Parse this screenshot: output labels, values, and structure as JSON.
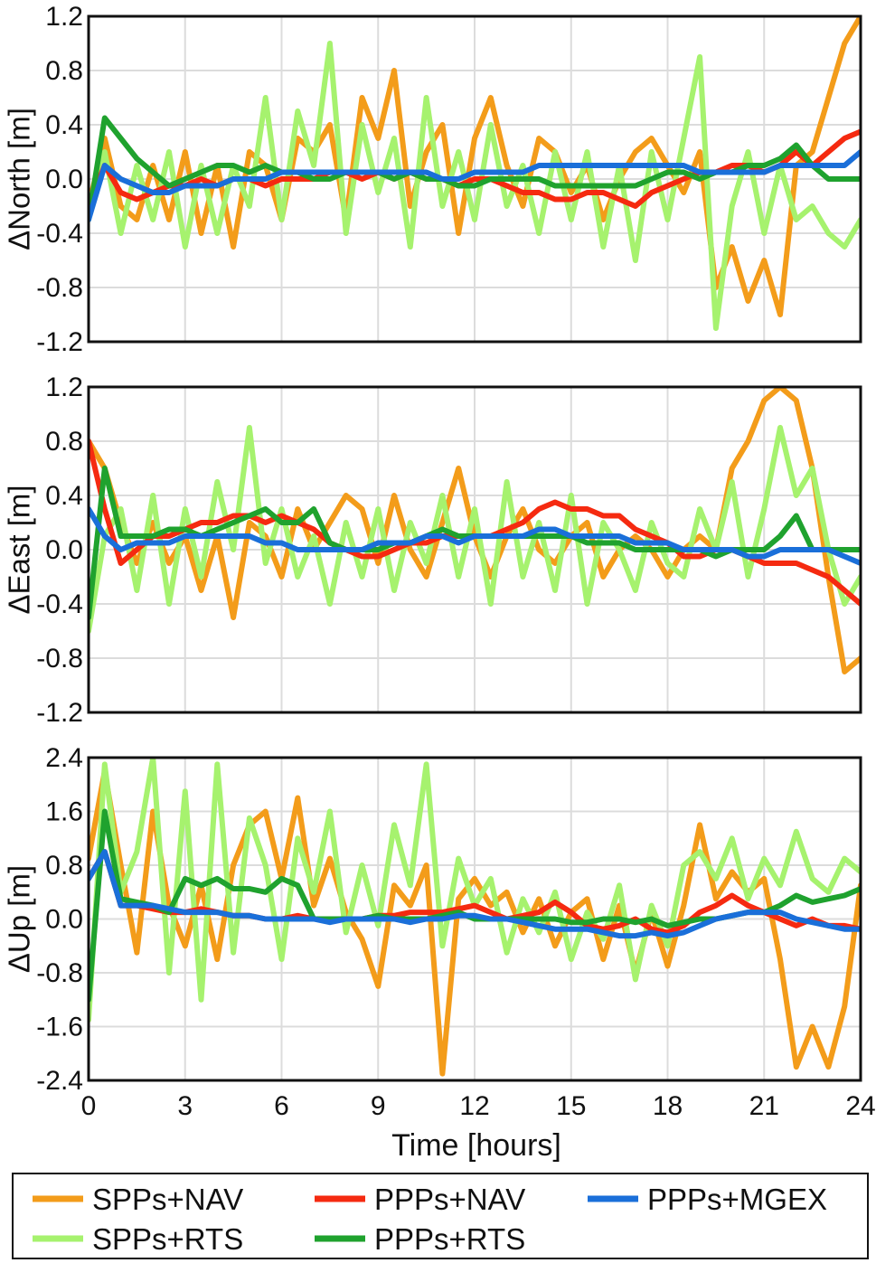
{
  "chart_data": [
    {
      "type": "line",
      "panel": "north",
      "ylabel": "ΔNorth [m]",
      "ylim": [
        -1.2,
        1.2
      ],
      "yticks": [
        -1.2,
        -0.8,
        -0.4,
        0.0,
        0.4,
        0.8,
        1.2
      ],
      "ytick_labels": [
        "-1.2",
        "-0.8",
        "-0.4",
        "0.0",
        "0.4",
        "0.8",
        "1.2"
      ],
      "xlim": [
        0,
        24
      ],
      "xticks": [
        0,
        3,
        6,
        9,
        12,
        15,
        18,
        21,
        24
      ],
      "grid": true,
      "x": [
        0,
        0.5,
        1,
        1.5,
        2,
        2.5,
        3,
        3.5,
        4,
        4.5,
        5,
        5.5,
        6,
        6.5,
        7,
        7.5,
        8,
        8.5,
        9,
        9.5,
        10,
        10.5,
        11,
        11.5,
        12,
        12.5,
        13,
        13.5,
        14,
        14.5,
        15,
        15.5,
        16,
        16.5,
        17,
        17.5,
        18,
        18.5,
        19,
        19.5,
        20,
        20.5,
        21,
        21.5,
        22,
        22.5,
        23,
        23.5,
        24
      ],
      "series": [
        {
          "name": "SPPs+NAV",
          "color": "#f39c1a",
          "width": 6,
          "values": [
            -0.2,
            0.3,
            -0.2,
            -0.3,
            0.1,
            -0.3,
            0.2,
            -0.4,
            0.1,
            -0.5,
            0.2,
            0.1,
            -0.3,
            0.3,
            0.2,
            0.4,
            -0.3,
            0.6,
            0.3,
            0.8,
            -0.2,
            0.2,
            0.4,
            -0.4,
            0.3,
            0.6,
            0.1,
            -0.2,
            0.3,
            0.2,
            -0.1,
            0.1,
            -0.3,
            0.0,
            0.2,
            0.3,
            0.1,
            -0.1,
            0.2,
            -0.8,
            -0.5,
            -0.9,
            -0.6,
            -1.0,
            0.1,
            0.2,
            0.6,
            1.0,
            1.2
          ]
        },
        {
          "name": "SPPs+RTS",
          "color": "#a6f26e",
          "width": 6,
          "values": [
            -0.2,
            0.2,
            -0.4,
            0.1,
            -0.3,
            0.2,
            -0.5,
            0.1,
            -0.4,
            0.1,
            -0.2,
            0.6,
            -0.3,
            0.5,
            0.1,
            1.0,
            -0.4,
            0.4,
            -0.1,
            0.3,
            -0.5,
            0.6,
            -0.2,
            0.2,
            -0.3,
            0.4,
            -0.2,
            0.1,
            -0.4,
            0.2,
            -0.3,
            0.2,
            -0.5,
            0.1,
            -0.6,
            0.2,
            -0.3,
            0.3,
            0.9,
            -1.1,
            -0.2,
            0.2,
            -0.4,
            0.1,
            -0.3,
            -0.2,
            -0.4,
            -0.5,
            -0.3
          ]
        },
        {
          "name": "PPPs+NAV",
          "color": "#f52a10",
          "width": 6,
          "values": [
            -0.2,
            0.1,
            -0.1,
            -0.15,
            -0.1,
            -0.05,
            -0.05,
            0.0,
            -0.05,
            0.0,
            0.0,
            -0.05,
            0.0,
            0.0,
            0.0,
            0.05,
            0.05,
            0.0,
            0.05,
            0.0,
            0.05,
            0.0,
            0.0,
            -0.05,
            0.0,
            0.0,
            -0.05,
            -0.1,
            -0.1,
            -0.15,
            -0.15,
            -0.1,
            -0.1,
            -0.15,
            -0.2,
            -0.1,
            -0.05,
            0.0,
            0.05,
            0.05,
            0.1,
            0.1,
            0.05,
            0.1,
            0.2,
            0.1,
            0.2,
            0.3,
            0.35
          ]
        },
        {
          "name": "PPPs+RTS",
          "color": "#1fa22e",
          "width": 6,
          "values": [
            -0.3,
            0.45,
            0.3,
            0.15,
            0.05,
            -0.05,
            0.0,
            0.05,
            0.1,
            0.1,
            0.05,
            0.1,
            0.05,
            0.05,
            0.0,
            0.0,
            0.05,
            0.05,
            0.05,
            0.0,
            0.05,
            0.0,
            0.0,
            -0.05,
            -0.05,
            0.0,
            0.0,
            0.0,
            0.0,
            -0.05,
            -0.05,
            -0.05,
            -0.05,
            -0.05,
            -0.05,
            0.0,
            0.05,
            0.05,
            0.0,
            0.05,
            0.05,
            0.1,
            0.1,
            0.15,
            0.25,
            0.1,
            0.0,
            0.0,
            0.0
          ]
        },
        {
          "name": "PPPs+MGEX",
          "color": "#1a6fd9",
          "width": 6,
          "values": [
            -0.3,
            0.1,
            0.0,
            -0.05,
            -0.1,
            -0.1,
            -0.05,
            -0.05,
            -0.05,
            0.0,
            0.0,
            0.0,
            0.05,
            0.05,
            0.05,
            0.05,
            0.05,
            0.05,
            0.05,
            0.05,
            0.05,
            0.05,
            0.0,
            0.0,
            0.05,
            0.05,
            0.05,
            0.05,
            0.1,
            0.1,
            0.1,
            0.1,
            0.1,
            0.1,
            0.1,
            0.1,
            0.1,
            0.1,
            0.05,
            0.05,
            0.05,
            0.05,
            0.05,
            0.1,
            0.1,
            0.1,
            0.1,
            0.1,
            0.2
          ]
        }
      ]
    },
    {
      "type": "line",
      "panel": "east",
      "ylabel": "ΔEast [m]",
      "ylim": [
        -1.2,
        1.2
      ],
      "yticks": [
        -1.2,
        -0.8,
        -0.4,
        0.0,
        0.4,
        0.8,
        1.2
      ],
      "ytick_labels": [
        "-1.2",
        "-0.8",
        "-0.4",
        "0.0",
        "0.4",
        "0.8",
        "1.2"
      ],
      "xlim": [
        0,
        24
      ],
      "xticks": [
        0,
        3,
        6,
        9,
        12,
        15,
        18,
        21,
        24
      ],
      "grid": true,
      "x": [
        0,
        0.5,
        1,
        1.5,
        2,
        2.5,
        3,
        3.5,
        4,
        4.5,
        5,
        5.5,
        6,
        6.5,
        7,
        7.5,
        8,
        8.5,
        9,
        9.5,
        10,
        10.5,
        11,
        11.5,
        12,
        12.5,
        13,
        13.5,
        14,
        14.5,
        15,
        15.5,
        16,
        16.5,
        17,
        17.5,
        18,
        18.5,
        19,
        19.5,
        20,
        20.5,
        21,
        21.5,
        22,
        22.5,
        23,
        23.5,
        24
      ],
      "series": [
        {
          "name": "SPPs+NAV",
          "color": "#f39c1a",
          "width": 6,
          "values": [
            0.8,
            0.6,
            0.2,
            -0.1,
            0.2,
            -0.1,
            0.1,
            -0.3,
            0.1,
            -0.5,
            0.2,
            0.1,
            -0.2,
            0.3,
            0.0,
            0.2,
            0.4,
            0.3,
            -0.1,
            0.4,
            0.0,
            -0.2,
            0.2,
            0.6,
            0.1,
            -0.2,
            0.1,
            0.3,
            0.0,
            -0.1,
            0.1,
            0.2,
            -0.2,
            0.0,
            0.1,
            0.0,
            -0.2,
            0.0,
            0.1,
            0.0,
            0.6,
            0.8,
            1.1,
            1.2,
            1.1,
            0.6,
            -0.2,
            -0.9,
            -0.8
          ]
        },
        {
          "name": "SPPs+RTS",
          "color": "#a6f26e",
          "width": 6,
          "values": [
            -0.6,
            0.1,
            0.3,
            -0.3,
            0.4,
            -0.4,
            0.3,
            -0.2,
            0.5,
            0.0,
            0.9,
            -0.1,
            0.3,
            -0.2,
            0.1,
            -0.4,
            0.2,
            -0.2,
            0.3,
            -0.3,
            0.2,
            -0.1,
            0.4,
            -0.2,
            0.3,
            -0.4,
            0.5,
            -0.2,
            0.2,
            -0.3,
            0.4,
            -0.4,
            0.2,
            0.0,
            -0.3,
            0.2,
            -0.1,
            -0.2,
            0.3,
            0.0,
            0.5,
            -0.2,
            0.3,
            0.9,
            0.4,
            0.6,
            0.0,
            -0.4,
            -0.2
          ]
        },
        {
          "name": "PPPs+NAV",
          "color": "#f52a10",
          "width": 6,
          "values": [
            0.8,
            0.3,
            -0.1,
            0.0,
            0.1,
            0.1,
            0.15,
            0.2,
            0.2,
            0.25,
            0.25,
            0.2,
            0.25,
            0.2,
            0.15,
            0.05,
            0.0,
            -0.05,
            -0.05,
            0.0,
            0.05,
            0.05,
            0.1,
            0.1,
            0.1,
            0.1,
            0.15,
            0.2,
            0.3,
            0.35,
            0.3,
            0.3,
            0.25,
            0.25,
            0.15,
            0.1,
            0.05,
            -0.05,
            -0.05,
            0.0,
            0.0,
            -0.05,
            -0.1,
            -0.1,
            -0.1,
            -0.15,
            -0.2,
            -0.3,
            -0.4
          ]
        },
        {
          "name": "PPPs+RTS",
          "color": "#1fa22e",
          "width": 6,
          "values": [
            -0.5,
            0.6,
            0.1,
            0.1,
            0.1,
            0.15,
            0.15,
            0.1,
            0.15,
            0.2,
            0.25,
            0.3,
            0.2,
            0.2,
            0.3,
            0.05,
            0.0,
            0.0,
            0.0,
            0.05,
            0.05,
            0.1,
            0.15,
            0.1,
            0.1,
            0.1,
            0.1,
            0.1,
            0.1,
            0.1,
            0.1,
            0.05,
            0.05,
            0.05,
            0.0,
            0.0,
            0.0,
            0.0,
            0.0,
            -0.05,
            0.0,
            0.0,
            0.0,
            0.1,
            0.25,
            0.0,
            0.0,
            0.0,
            0.0
          ]
        },
        {
          "name": "PPPs+MGEX",
          "color": "#1a6fd9",
          "width": 6,
          "values": [
            0.3,
            0.1,
            0.0,
            0.05,
            0.05,
            0.05,
            0.1,
            0.1,
            0.1,
            0.1,
            0.1,
            0.05,
            0.05,
            0.0,
            0.0,
            0.0,
            0.0,
            0.0,
            0.05,
            0.05,
            0.05,
            0.1,
            0.1,
            0.05,
            0.1,
            0.1,
            0.1,
            0.1,
            0.15,
            0.15,
            0.1,
            0.1,
            0.1,
            0.1,
            0.05,
            0.05,
            0.05,
            0.0,
            0.0,
            0.0,
            0.0,
            -0.05,
            -0.05,
            0.0,
            0.0,
            0.0,
            0.0,
            -0.05,
            -0.1
          ]
        }
      ]
    },
    {
      "type": "line",
      "panel": "up",
      "ylabel": "ΔUp [m]",
      "ylim": [
        -2.4,
        2.4
      ],
      "yticks": [
        -2.4,
        -1.6,
        -0.8,
        0.0,
        0.8,
        1.6,
        2.4
      ],
      "ytick_labels": [
        "-2.4",
        "-1.6",
        "-0.8",
        "0.0",
        "0.8",
        "1.6",
        "2.4"
      ],
      "xlim": [
        0,
        24
      ],
      "xticks": [
        0,
        3,
        6,
        9,
        12,
        15,
        18,
        21,
        24
      ],
      "xtick_labels": [
        "0",
        "3",
        "6",
        "9",
        "12",
        "15",
        "18",
        "21",
        "24"
      ],
      "xlabel": "Time [hours]",
      "grid": true,
      "x": [
        0,
        0.5,
        1,
        1.5,
        2,
        2.5,
        3,
        3.5,
        4,
        4.5,
        5,
        5.5,
        6,
        6.5,
        7,
        7.5,
        8,
        8.5,
        9,
        9.5,
        10,
        10.5,
        11,
        11.5,
        12,
        12.5,
        13,
        13.5,
        14,
        14.5,
        15,
        15.5,
        16,
        16.5,
        17,
        17.5,
        18,
        18.5,
        19,
        19.5,
        20,
        20.5,
        21,
        21.5,
        22,
        22.5,
        23,
        23.5,
        24
      ],
      "series": [
        {
          "name": "SPPs+NAV",
          "color": "#f39c1a",
          "width": 6,
          "values": [
            0.9,
            2.2,
            0.8,
            -0.5,
            1.6,
            0.2,
            -0.4,
            0.5,
            -0.6,
            0.8,
            1.4,
            1.6,
            0.6,
            1.8,
            0.2,
            0.9,
            0.1,
            -0.3,
            -1.0,
            0.5,
            0.2,
            0.8,
            -2.3,
            0.3,
            0.6,
            0.2,
            0.4,
            -0.2,
            0.3,
            -0.4,
            0.1,
            0.3,
            -0.6,
            0.2,
            -0.8,
            0.1,
            -0.7,
            0.2,
            1.4,
            0.3,
            0.7,
            0.4,
            0.6,
            -0.6,
            -2.2,
            -1.6,
            -2.2,
            -1.3,
            0.5
          ]
        },
        {
          "name": "SPPs+RTS",
          "color": "#a6f26e",
          "width": 6,
          "values": [
            -1.5,
            2.3,
            0.4,
            1.0,
            2.4,
            -0.8,
            1.9,
            -1.2,
            2.3,
            -0.5,
            1.5,
            0.8,
            -0.6,
            1.2,
            0.4,
            1.6,
            -0.2,
            0.8,
            -0.1,
            1.4,
            0.5,
            2.3,
            -0.4,
            0.9,
            0.2,
            0.6,
            -0.5,
            0.3,
            -0.2,
            0.4,
            -0.6,
            0.1,
            -0.3,
            0.5,
            -0.9,
            0.2,
            -0.4,
            0.8,
            1.0,
            0.6,
            1.2,
            0.3,
            0.9,
            0.5,
            1.3,
            0.6,
            0.4,
            0.9,
            0.7
          ]
        },
        {
          "name": "PPPs+NAV",
          "color": "#f52a10",
          "width": 6,
          "values": [
            0.6,
            1.0,
            0.2,
            0.2,
            0.15,
            0.1,
            0.1,
            0.15,
            0.1,
            0.05,
            0.05,
            0.0,
            0.0,
            0.05,
            0.0,
            0.0,
            0.0,
            0.0,
            0.05,
            0.05,
            0.1,
            0.1,
            0.1,
            0.15,
            0.2,
            0.1,
            0.0,
            0.05,
            0.1,
            0.25,
            0.1,
            -0.1,
            -0.15,
            -0.1,
            0.0,
            -0.15,
            -0.2,
            -0.1,
            0.1,
            0.2,
            0.35,
            0.2,
            0.1,
            0.0,
            -0.1,
            0.0,
            -0.1,
            -0.1,
            -0.15
          ]
        },
        {
          "name": "PPPs+RTS",
          "color": "#1fa22e",
          "width": 6,
          "values": [
            -1.2,
            1.6,
            0.3,
            0.25,
            0.2,
            0.1,
            0.6,
            0.5,
            0.6,
            0.45,
            0.45,
            0.4,
            0.6,
            0.5,
            0.0,
            0.0,
            0.0,
            0.0,
            0.05,
            0.0,
            0.0,
            0.0,
            0.05,
            0.1,
            0.0,
            0.0,
            0.0,
            0.0,
            0.0,
            0.0,
            -0.05,
            -0.05,
            0.0,
            0.0,
            -0.05,
            0.0,
            -0.1,
            -0.05,
            0.0,
            0.0,
            0.05,
            0.1,
            0.1,
            0.2,
            0.35,
            0.25,
            0.3,
            0.35,
            0.45
          ]
        },
        {
          "name": "PPPs+MGEX",
          "color": "#1a6fd9",
          "width": 6,
          "values": [
            0.6,
            1.0,
            0.2,
            0.2,
            0.2,
            0.15,
            0.1,
            0.1,
            0.1,
            0.05,
            0.05,
            0.0,
            0.0,
            0.0,
            0.0,
            -0.05,
            0.0,
            0.0,
            0.0,
            0.0,
            -0.05,
            0.0,
            0.0,
            0.05,
            0.05,
            0.0,
            0.0,
            -0.05,
            -0.1,
            -0.15,
            -0.15,
            -0.15,
            -0.2,
            -0.25,
            -0.25,
            -0.2,
            -0.25,
            -0.2,
            -0.1,
            0.0,
            0.05,
            0.1,
            0.1,
            0.1,
            0.0,
            -0.05,
            -0.1,
            -0.15,
            -0.15
          ]
        }
      ]
    }
  ],
  "legend": {
    "placement": "bottom",
    "items": [
      {
        "label": "SPPs+NAV",
        "color": "#f39c1a"
      },
      {
        "label": "PPPs+NAV",
        "color": "#f52a10"
      },
      {
        "label": "PPPs+MGEX",
        "color": "#1a6fd9"
      },
      {
        "label": "SPPs+RTS",
        "color": "#a6f26e"
      },
      {
        "label": "PPPs+RTS",
        "color": "#1fa22e"
      }
    ]
  }
}
